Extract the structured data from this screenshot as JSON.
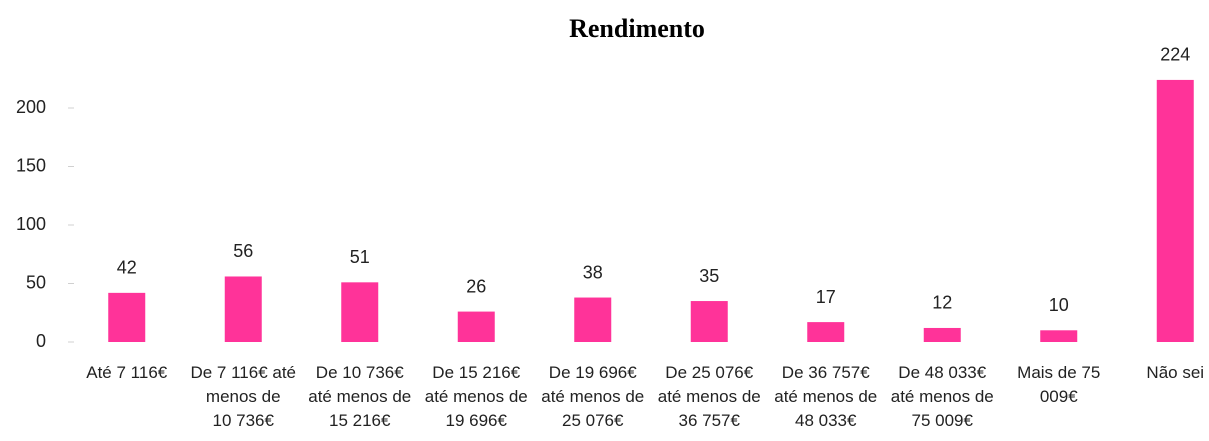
{
  "chart_data": {
    "type": "bar",
    "title": "Rendimento",
    "categories": [
      "Até 7 116€",
      "De 7 116€ até menos de 10 736€",
      "De 10 736€ até menos de 15 216€",
      "De 15 216€ até menos de 19 696€",
      "De 19 696€ até menos de 25 076€",
      "De 25 076€ até menos de 36 757€",
      "De 36 757€ até menos de 48 033€",
      "De 48 033€ até menos de 75 009€",
      "Mais de 75 009€",
      "Não sei"
    ],
    "values": [
      42,
      56,
      51,
      26,
      38,
      35,
      17,
      12,
      10,
      224
    ],
    "color": "#ff3399",
    "ylim": [
      0,
      250
    ],
    "yticks": [
      0,
      50,
      100,
      150,
      200
    ],
    "grid": false
  }
}
